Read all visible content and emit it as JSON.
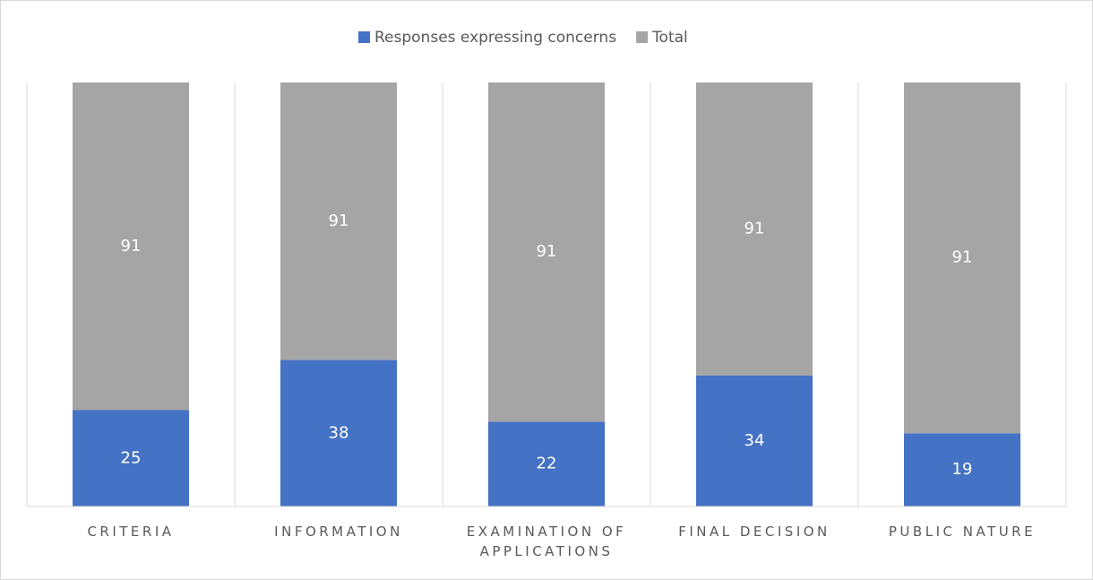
{
  "chart_data": {
    "type": "stacked-bar",
    "categories": [
      "CRITERIA",
      "INFORMATION",
      "EXAMINATION OF APPLICATIONS",
      "FINAL DECISION",
      "PUBLIC NATURE"
    ],
    "series": [
      {
        "name": "Responses expressing concerns",
        "color": "#4472c4",
        "values": [
          25,
          38,
          22,
          34,
          19
        ]
      },
      {
        "name": "Total",
        "color": "#a5a5a5",
        "values": [
          91,
          91,
          91,
          91,
          91
        ]
      }
    ],
    "ylim": [
      0,
      110
    ],
    "legend": "top"
  }
}
